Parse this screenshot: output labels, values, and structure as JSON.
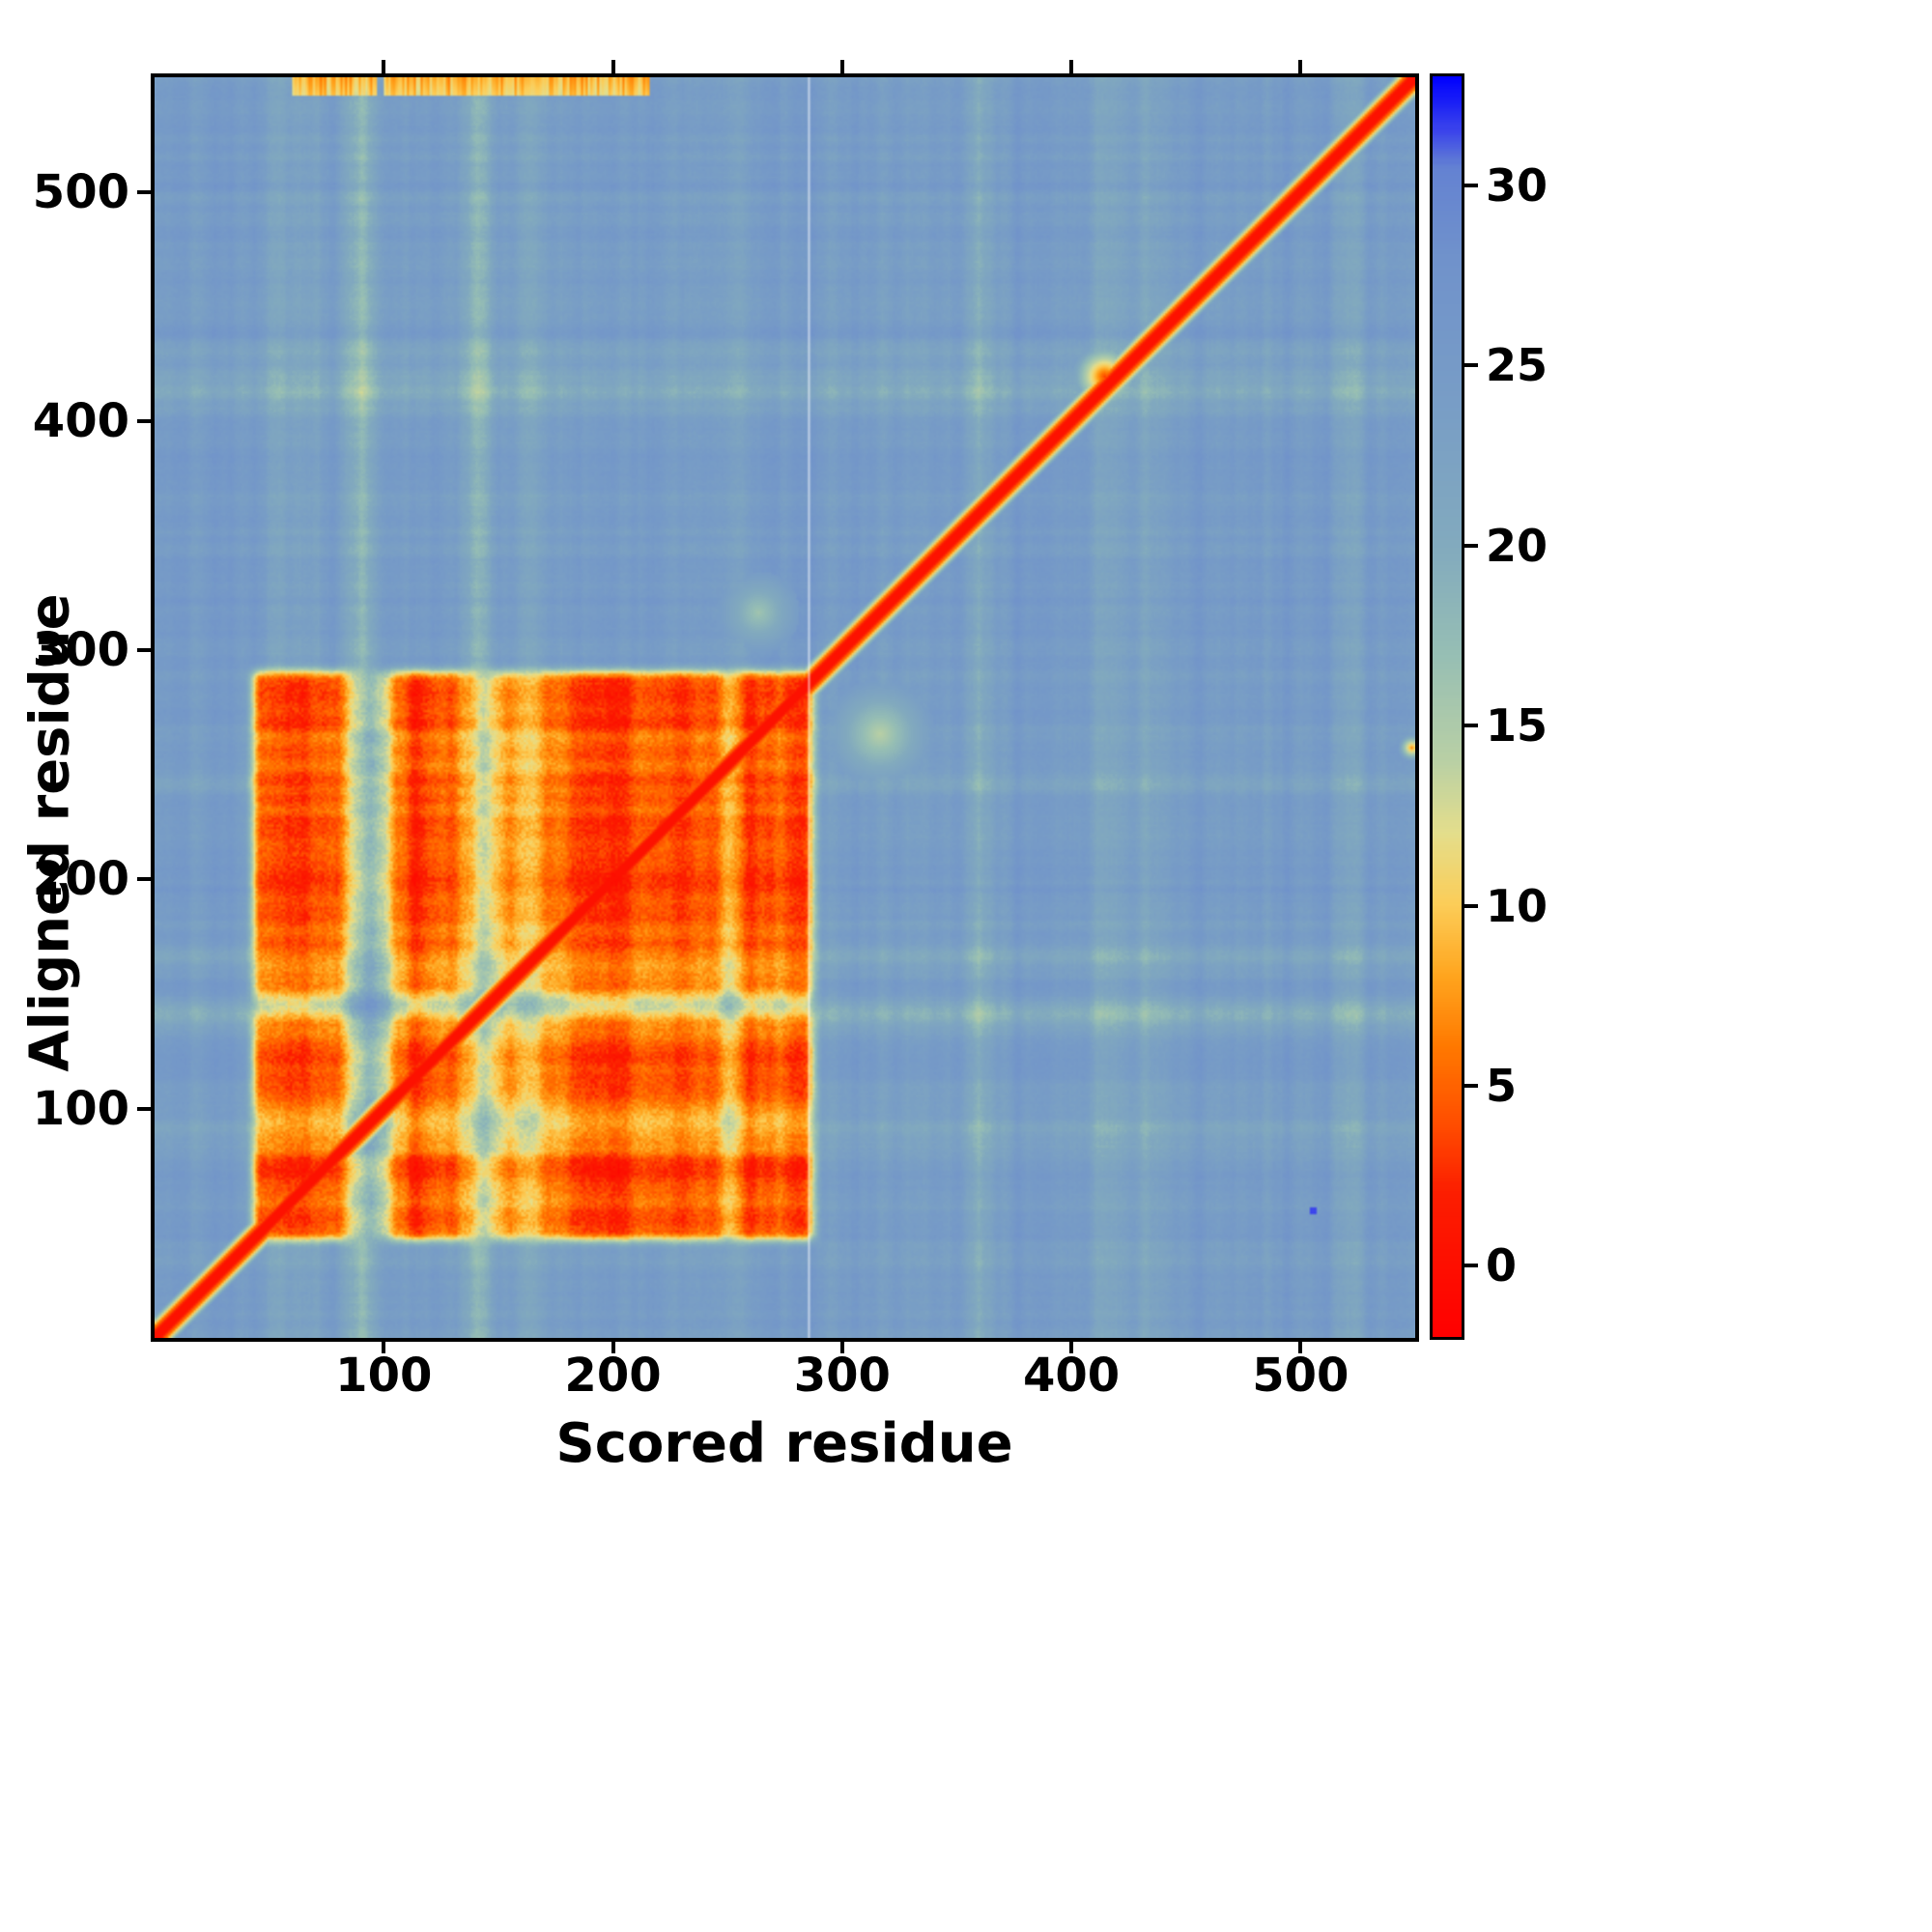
{
  "chart_data": {
    "type": "heatmap",
    "title": "",
    "xlabel": "Scored residue",
    "ylabel": "Aligned residue",
    "x_ticks": [
      100,
      200,
      300,
      400,
      500
    ],
    "y_ticks": [
      100,
      200,
      300,
      400,
      500
    ],
    "axis_range": [
      0,
      550
    ],
    "grid": false,
    "legend": "colorbar-right",
    "colorbar": {
      "ticks": [
        0,
        5,
        10,
        15,
        20,
        25,
        30
      ],
      "vmin": -2,
      "vmax": 33
    },
    "colormap_stops": [
      [
        -2,
        [
          255,
          0,
          0
        ]
      ],
      [
        2,
        [
          252,
          30,
          0
        ]
      ],
      [
        4,
        [
          255,
          80,
          0
        ]
      ],
      [
        6,
        [
          255,
          120,
          0
        ]
      ],
      [
        8,
        [
          255,
          165,
          30
        ]
      ],
      [
        10,
        [
          252,
          205,
          88
        ]
      ],
      [
        12,
        [
          228,
          222,
          140
        ]
      ],
      [
        14,
        [
          185,
          208,
          165
        ]
      ],
      [
        17,
        [
          150,
          190,
          180
        ]
      ],
      [
        20,
        [
          130,
          170,
          190
        ]
      ],
      [
        24,
        [
          120,
          157,
          198
        ]
      ],
      [
        28,
        [
          112,
          146,
          203
        ]
      ],
      [
        30.5,
        [
          100,
          130,
          210
        ]
      ],
      [
        31.5,
        [
          60,
          70,
          235
        ]
      ],
      [
        33,
        [
          0,
          0,
          255
        ]
      ]
    ],
    "features": {
      "background_value": 24.3,
      "diagonal": {
        "core_value": 0.35,
        "core_halfwidth": 2.2,
        "fringe_halfwidth": 10
      },
      "block": {
        "x": [
          41,
          288
        ],
        "y": [
          41,
          291
        ],
        "value": 4.5,
        "gaps": [
          {
            "axis": "x",
            "from": 86,
            "to": 101,
            "raise": 13
          },
          {
            "axis": "x",
            "from": 138,
            "to": 151,
            "raise": 9.5
          },
          {
            "axis": "x",
            "from": 160,
            "to": 169,
            "raise": 6
          },
          {
            "axis": "x",
            "from": 246,
            "to": 253,
            "raise": 4
          },
          {
            "axis": "y",
            "from": 86,
            "to": 101,
            "raise": 6
          },
          {
            "axis": "y",
            "from": 138,
            "to": 151,
            "raise": 7.5
          },
          {
            "axis": "y",
            "from": 160,
            "to": 168,
            "raise": 4
          }
        ]
      },
      "streaks": [
        {
          "axis": "x",
          "pos": 60,
          "width": 16,
          "delta": -3
        },
        {
          "axis": "x",
          "pos": 90,
          "width": 12,
          "delta": -5.5
        },
        {
          "axis": "x",
          "pos": 141,
          "width": 10,
          "delta": -5.5
        },
        {
          "axis": "x",
          "pos": 164,
          "width": 7,
          "delta": -3.5
        },
        {
          "axis": "x",
          "pos": 250,
          "width": 10,
          "delta": -2
        },
        {
          "axis": "x",
          "pos": 360,
          "width": 10,
          "delta": -3
        },
        {
          "axis": "x",
          "pos": 415,
          "width": 12,
          "delta": -3.5
        },
        {
          "axis": "x",
          "pos": 432,
          "width": 7,
          "delta": -3
        },
        {
          "axis": "x",
          "pos": 520,
          "width": 8,
          "delta": -2.5
        },
        {
          "axis": "y",
          "pos": 90,
          "width": 10,
          "delta": -3
        },
        {
          "axis": "y",
          "pos": 141,
          "width": 9,
          "delta": -5.5
        },
        {
          "axis": "y",
          "pos": 165,
          "width": 6,
          "delta": -3
        },
        {
          "axis": "y",
          "pos": 242,
          "width": 8,
          "delta": -2.5
        },
        {
          "axis": "y",
          "pos": 262,
          "width": 6,
          "delta": -2
        },
        {
          "axis": "y",
          "pos": 415,
          "width": 12,
          "delta": -3.5
        },
        {
          "axis": "y",
          "pos": 430,
          "width": 6,
          "delta": -2.5
        }
      ],
      "blobs": [
        {
          "x": 414,
          "y": 419,
          "r": 15,
          "value": 3.5
        },
        {
          "x": 548,
          "y": 257,
          "r": 6,
          "value": 7
        },
        {
          "x": 316,
          "y": 263,
          "r": 24,
          "value": 14
        },
        {
          "x": 263,
          "y": 316,
          "r": 18,
          "value": 16
        }
      ],
      "blue_speck": {
        "x": 505,
        "y": 55,
        "r": 1.6,
        "value": 31.5
      },
      "top_edge_smear": {
        "y_from": 541,
        "x_ranges": [
          [
            60,
            96
          ],
          [
            100,
            215
          ]
        ],
        "value": 8
      },
      "white_line_x": 285
    }
  }
}
